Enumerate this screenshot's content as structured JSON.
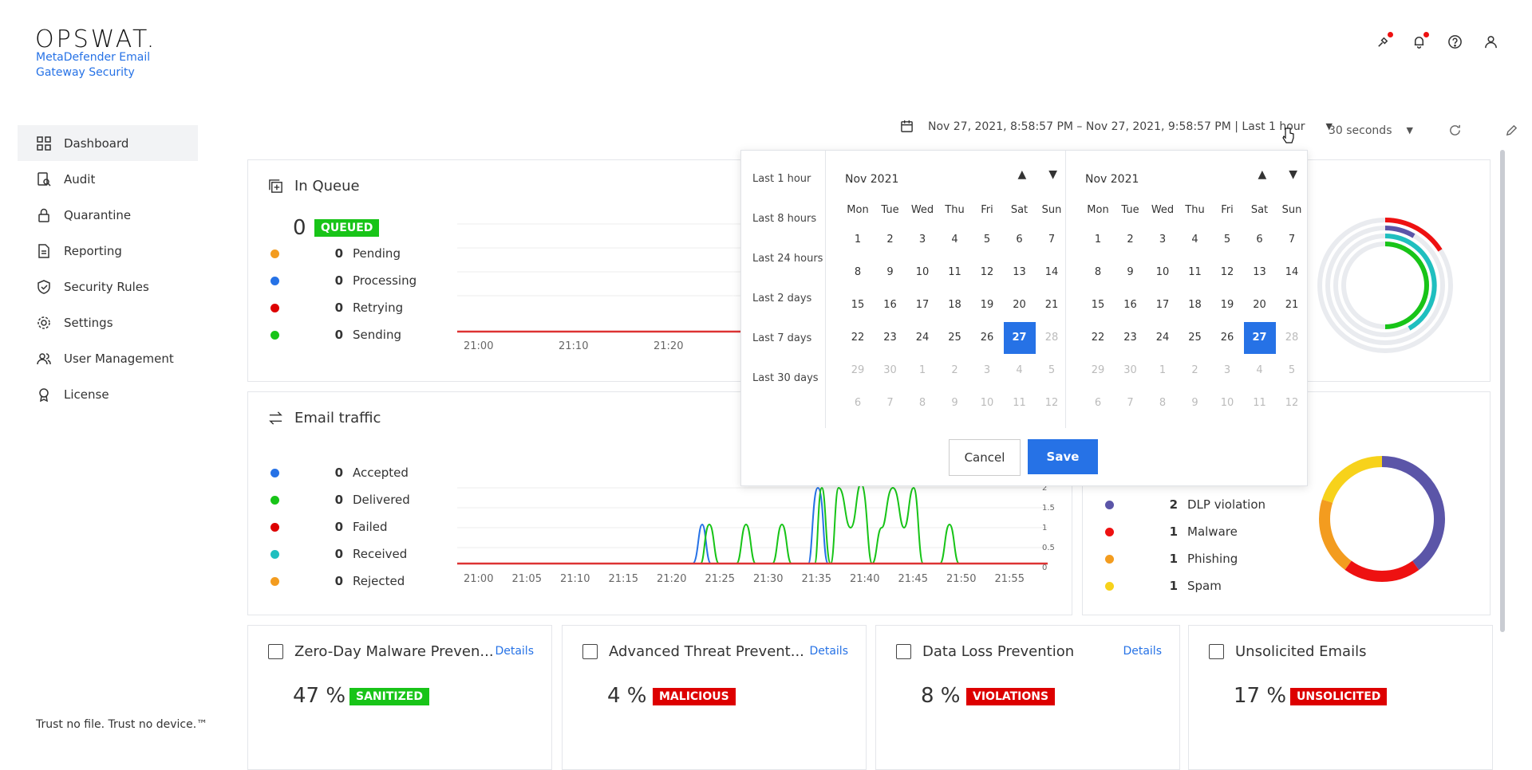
{
  "brand": {
    "logo": "OPSWAT.",
    "product": "MetaDefender Email Gateway Security"
  },
  "sidebar": {
    "items": [
      {
        "label": "Dashboard"
      },
      {
        "label": "Audit"
      },
      {
        "label": "Quarantine"
      },
      {
        "label": "Reporting"
      },
      {
        "label": "Security Rules"
      },
      {
        "label": "Settings"
      },
      {
        "label": "User Management"
      },
      {
        "label": "License"
      }
    ],
    "footer": "Trust no file. Trust no device.™"
  },
  "toolbar": {
    "range_text": "Nov 27, 2021, 8:58:57 PM – Nov 27, 2021, 9:58:57 PM | Last 1 hour",
    "refresh_interval": "30 seconds"
  },
  "queue": {
    "title": "In Queue",
    "total": "0",
    "tag": "QUEUED",
    "legend": [
      {
        "num": "0",
        "label": "Pending",
        "color": "#f39c1f"
      },
      {
        "num": "0",
        "label": "Processing",
        "color": "#2672e6"
      },
      {
        "num": "0",
        "label": "Retrying",
        "color": "#d00"
      },
      {
        "num": "0",
        "label": "Sending",
        "color": "#18c418"
      }
    ],
    "x_ticks": [
      "21:00",
      "21:10",
      "21:20"
    ]
  },
  "traffic": {
    "title": "Email traffic",
    "legend": [
      {
        "num": "0",
        "label": "Accepted",
        "color": "#2672e6"
      },
      {
        "num": "0",
        "label": "Delivered",
        "color": "#18c418"
      },
      {
        "num": "0",
        "label": "Failed",
        "color": "#d00"
      },
      {
        "num": "0",
        "label": "Received",
        "color": "#1fbfbf"
      },
      {
        "num": "0",
        "label": "Rejected",
        "color": "#f39c1f"
      }
    ],
    "x_ticks": [
      "21:00",
      "21:05",
      "21:10",
      "21:15",
      "21:20",
      "21:25",
      "21:30",
      "21:35",
      "21:40",
      "21:45",
      "21:50",
      "21:55"
    ],
    "y_ticks": [
      "2",
      "1.5",
      "1",
      "0.5",
      "0"
    ]
  },
  "threats": {
    "legend": [
      {
        "num": "2",
        "label": "DLP violation",
        "color": "#5b55a8"
      },
      {
        "num": "1",
        "label": "Malware",
        "color": "#e11"
      },
      {
        "num": "1",
        "label": "Phishing",
        "color": "#f39c1f"
      },
      {
        "num": "1",
        "label": "Spam",
        "color": "#f7d21b"
      }
    ]
  },
  "bottom_cards": [
    {
      "title": "Zero-Day Malware Preven...",
      "details": "Details",
      "value": "47 %",
      "tag": "SANITIZED",
      "tag_color": "#18c418"
    },
    {
      "title": "Advanced Threat Prevent...",
      "details": "Details",
      "value": "4 %",
      "tag": "MALICIOUS",
      "tag_color": "#d00"
    },
    {
      "title": "Data Loss Prevention",
      "details": "Details",
      "value": "8 %",
      "tag": "VIOLATIONS",
      "tag_color": "#d00"
    },
    {
      "title": "Unsolicited Emails",
      "details": "",
      "value": "17 %",
      "tag": "UNSOLICITED",
      "tag_color": "#d00"
    }
  ],
  "datepicker": {
    "presets": [
      "Last 1 hour",
      "Last 8 hours",
      "Last 24 hours",
      "Last 2 days",
      "Last 7 days",
      "Last 30 days"
    ],
    "left_month": "Nov 2021",
    "right_month": "Nov 2021",
    "weekdays": [
      "Mon",
      "Tue",
      "Wed",
      "Thu",
      "Fri",
      "Sat",
      "Sun"
    ],
    "weeks": [
      [
        "1",
        "2",
        "3",
        "4",
        "5",
        "6",
        "7"
      ],
      [
        "8",
        "9",
        "10",
        "11",
        "12",
        "13",
        "14"
      ],
      [
        "15",
        "16",
        "17",
        "18",
        "19",
        "20",
        "21"
      ],
      [
        "22",
        "23",
        "24",
        "25",
        "26",
        "27",
        "28"
      ],
      [
        "29",
        "30",
        "1",
        "2",
        "3",
        "4",
        "5"
      ],
      [
        "6",
        "7",
        "8",
        "9",
        "10",
        "11",
        "12"
      ]
    ],
    "selected_day": "27",
    "cancel": "Cancel",
    "save": "Save"
  }
}
